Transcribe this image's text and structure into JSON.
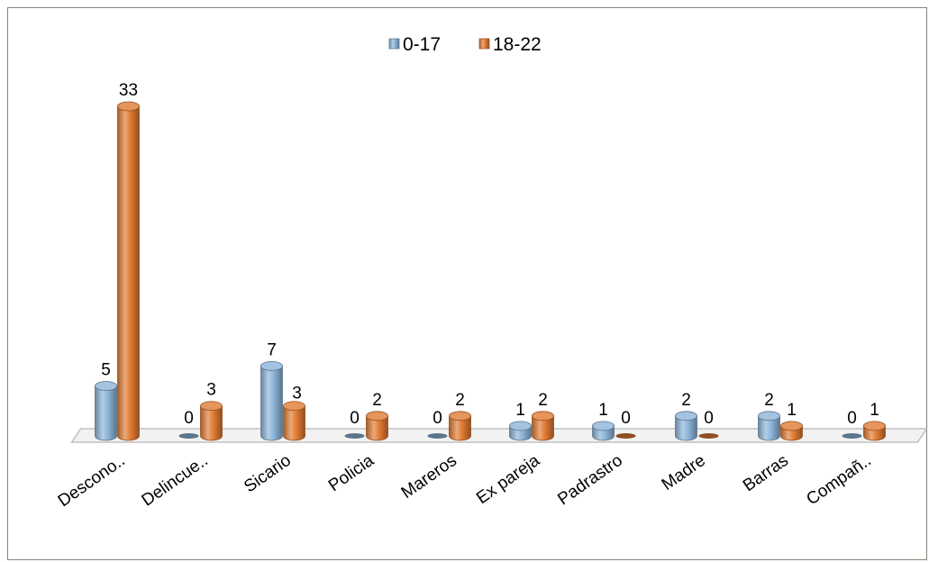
{
  "chart_data": {
    "type": "bar",
    "title": "",
    "xlabel": "",
    "ylabel": "",
    "categories": [
      "Descono..",
      "Delincue..",
      "Sicario",
      "Policia",
      "Mareros",
      "Ex pareja",
      "Padrastro",
      "Madre",
      "Barras",
      "Compañ.."
    ],
    "series": [
      {
        "name": "0-17",
        "values": [
          5,
          0,
          7,
          0,
          0,
          1,
          1,
          2,
          2,
          0
        ],
        "color": "#8cb4d8"
      },
      {
        "name": "18-22",
        "values": [
          33,
          3,
          3,
          2,
          2,
          2,
          0,
          0,
          1,
          1
        ],
        "color": "#e07a32"
      }
    ],
    "ylim": [
      0,
      33
    ],
    "grid": false,
    "legend": "top",
    "style": "3d-cylinder"
  }
}
